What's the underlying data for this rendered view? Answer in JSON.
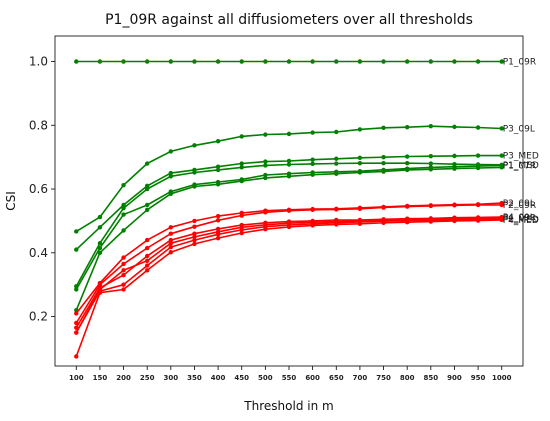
{
  "chart_data": {
    "type": "line",
    "title": "P1_09R against all diffusiometers over all thresholds",
    "xlabel": "Threshold in m",
    "ylabel": "CSI",
    "x": [
      100,
      150,
      200,
      250,
      300,
      350,
      400,
      450,
      500,
      550,
      600,
      650,
      700,
      750,
      800,
      850,
      900,
      950,
      1000
    ],
    "x_ticks": [
      "100",
      "150",
      "200",
      "250",
      "300",
      "350",
      "400",
      "450",
      "500",
      "550",
      "600",
      "650",
      "700",
      "750",
      "800",
      "850",
      "900",
      "950",
      "1000"
    ],
    "xlim": [
      55,
      1045
    ],
    "y_ticks": [
      "0.2",
      "0.4",
      "0.6",
      "0.8",
      "1.0"
    ],
    "y_tick_values": [
      0.2,
      0.4,
      0.6,
      0.8,
      1.0
    ],
    "ylim": [
      0.045,
      1.08
    ],
    "grid": false,
    "series": [
      {
        "name": "P1_09R",
        "color": "#008000",
        "values": [
          1.0,
          1.0,
          1.0,
          1.0,
          1.0,
          1.0,
          1.0,
          1.0,
          1.0,
          1.0,
          1.0,
          1.0,
          1.0,
          1.0,
          1.0,
          1.0,
          1.0,
          1.0,
          1.0
        ]
      },
      {
        "name": "P3_09L",
        "color": "#008000",
        "values": [
          0.467,
          0.512,
          0.612,
          0.68,
          0.718,
          0.737,
          0.75,
          0.765,
          0.771,
          0.773,
          0.777,
          0.779,
          0.787,
          0.792,
          0.794,
          0.797,
          0.795,
          0.793,
          0.79
        ]
      },
      {
        "name": "P3_MED",
        "color": "#008000",
        "values": [
          0.41,
          0.48,
          0.55,
          0.61,
          0.65,
          0.66,
          0.67,
          0.68,
          0.686,
          0.688,
          0.692,
          0.695,
          0.698,
          0.7,
          0.702,
          0.703,
          0.704,
          0.705,
          0.705
        ]
      },
      {
        "name": "P1_MED",
        "color": "#008000",
        "values": [
          0.295,
          0.43,
          0.54,
          0.6,
          0.64,
          0.652,
          0.66,
          0.668,
          0.674,
          0.677,
          0.679,
          0.68,
          0.681,
          0.681,
          0.681,
          0.68,
          0.678,
          0.677,
          0.676
        ]
      },
      {
        "name": "P1_07R",
        "color": "#008000",
        "values": [
          0.285,
          0.415,
          0.52,
          0.55,
          0.592,
          0.614,
          0.622,
          0.63,
          0.644,
          0.648,
          0.652,
          0.654,
          0.656,
          0.66,
          0.664,
          0.668,
          0.67,
          0.672,
          0.674
        ]
      },
      {
        "name": "",
        "color": "#008000",
        "values": [
          0.22,
          0.4,
          0.47,
          0.535,
          0.585,
          0.608,
          0.615,
          0.625,
          0.635,
          0.64,
          0.645,
          0.648,
          0.652,
          0.655,
          0.66,
          0.662,
          0.664,
          0.666,
          0.668
        ]
      },
      {
        "name": "P2_09L",
        "color": "#ff0000",
        "values": [
          0.21,
          0.305,
          0.385,
          0.44,
          0.48,
          0.5,
          0.515,
          0.525,
          0.532,
          0.535,
          0.537,
          0.538,
          0.541,
          0.544,
          0.547,
          0.549,
          0.551,
          0.552,
          0.556
        ]
      },
      {
        "name": "P2_09R",
        "color": "#ff0000",
        "values": [
          0.18,
          0.3,
          0.365,
          0.415,
          0.46,
          0.482,
          0.502,
          0.517,
          0.527,
          0.532,
          0.535,
          0.536,
          0.538,
          0.542,
          0.545,
          0.547,
          0.549,
          0.55,
          0.55
        ]
      },
      {
        "name": "P4_09L",
        "color": "#ff0000",
        "values": [
          0.165,
          0.29,
          0.33,
          0.39,
          0.44,
          0.46,
          0.475,
          0.487,
          0.494,
          0.498,
          0.5,
          0.503,
          0.503,
          0.505,
          0.507,
          0.508,
          0.51,
          0.511,
          0.512
        ]
      },
      {
        "name": "P4_09R",
        "color": "#ff0000",
        "values": [
          0.15,
          0.285,
          0.345,
          0.375,
          0.43,
          0.45,
          0.466,
          0.48,
          0.488,
          0.493,
          0.496,
          0.498,
          0.5,
          0.502,
          0.504,
          0.505,
          0.506,
          0.508,
          0.51
        ]
      },
      {
        "name": "P2_MED",
        "color": "#ff0000",
        "values": [
          0.15,
          0.28,
          0.3,
          0.36,
          0.418,
          0.44,
          0.458,
          0.472,
          0.482,
          0.487,
          0.491,
          0.494,
          0.497,
          0.499,
          0.501,
          0.502,
          0.503,
          0.505,
          0.506
        ]
      },
      {
        "name": "P4_MED",
        "color": "#ff0000",
        "values": [
          0.075,
          0.275,
          0.285,
          0.345,
          0.402,
          0.428,
          0.446,
          0.462,
          0.474,
          0.481,
          0.486,
          0.489,
          0.491,
          0.494,
          0.496,
          0.498,
          0.5,
          0.501,
          0.503
        ]
      }
    ]
  }
}
